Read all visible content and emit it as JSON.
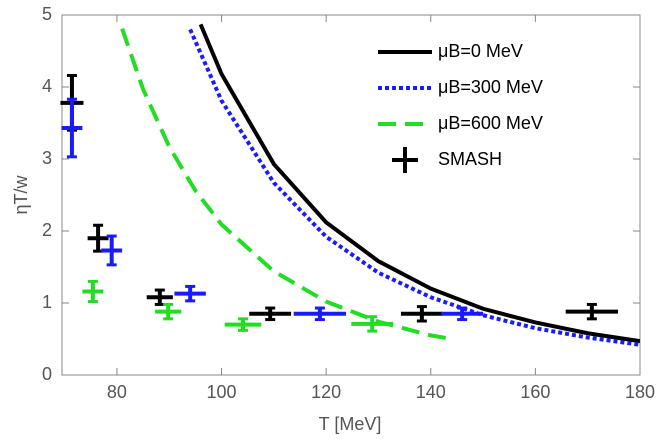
{
  "chart_data": {
    "type": "line",
    "x_label": "T [MeV]",
    "y_label": "ηT/w",
    "xlim": [
      69.5,
      180
    ],
    "xticks": [
      80,
      100,
      120,
      140,
      160,
      180
    ],
    "ylim": [
      0,
      5
    ],
    "yticks": [
      0,
      1,
      2,
      3,
      4,
      5
    ],
    "series": [
      {
        "name": "μB=0 MeV",
        "color": "#000000",
        "style": "solid",
        "x": [
          96,
          100,
          110,
          120,
          130,
          140,
          150,
          160,
          170,
          180
        ],
        "values": [
          4.87,
          4.18,
          2.93,
          2.12,
          1.58,
          1.2,
          0.92,
          0.73,
          0.58,
          0.47
        ]
      },
      {
        "name": "μB=300 MeV",
        "color": "#1a1aff",
        "style": "dotted",
        "x": [
          94,
          100,
          110,
          120,
          130,
          140,
          150,
          160,
          170,
          180
        ],
        "values": [
          4.8,
          3.81,
          2.67,
          1.92,
          1.42,
          1.08,
          0.83,
          0.65,
          0.52,
          0.42
        ]
      },
      {
        "name": "μB=600 MeV",
        "color": "#22dd22",
        "style": "dashed",
        "x": [
          81,
          85,
          90,
          95,
          100,
          110,
          120,
          130,
          140,
          144
        ],
        "values": [
          4.81,
          3.97,
          3.17,
          2.56,
          2.09,
          1.44,
          1.02,
          0.74,
          0.55,
          0.5
        ]
      }
    ],
    "points": [
      {
        "name": "SMASH",
        "color": "#000000",
        "x": [
          71.4,
          76.4,
          88.2,
          109.3,
          138.3,
          170.8
        ],
        "xerr": [
          2.2,
          2,
          2.5,
          4,
          4,
          5
        ],
        "values": [
          3.78,
          1.9,
          1.08,
          0.85,
          0.85,
          0.88
        ],
        "yerr": [
          0.38,
          0.18,
          0.1,
          0.08,
          0.1,
          0.1
        ]
      },
      {
        "color": "#1a1aff",
        "x": [
          71.4,
          79,
          94,
          118.8,
          146
        ],
        "xerr": [
          2,
          2,
          3,
          5,
          4
        ],
        "values": [
          3.43,
          1.73,
          1.13,
          0.85,
          0.85
        ],
        "yerr": [
          0.4,
          0.2,
          0.1,
          0.08,
          0.08
        ]
      },
      {
        "color": "#22dd22",
        "x": [
          75.4,
          89.8,
          104.1,
          128.8
        ],
        "xerr": [
          2,
          2.5,
          3.5,
          4
        ],
        "values": [
          1.16,
          0.88,
          0.7,
          0.71
        ],
        "yerr": [
          0.14,
          0.1,
          0.08,
          0.1
        ]
      }
    ]
  }
}
